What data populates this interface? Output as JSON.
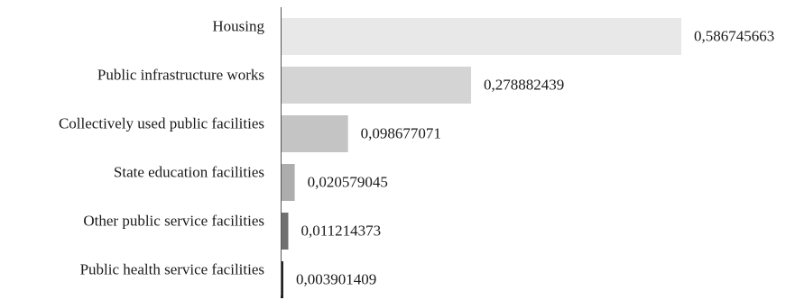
{
  "chart_data": {
    "type": "bar",
    "orientation": "horizontal",
    "categories": [
      "Housing",
      "Public infrastructure works",
      "Collectively used public facilities",
      "State education facilities",
      "Other public service facilities",
      "Public health service facilities"
    ],
    "values": [
      0.586745663,
      0.278882439,
      0.098677071,
      0.020579045,
      0.011214373,
      0.003901409
    ],
    "value_labels": [
      "0,586745663",
      "0,278882439",
      "0,098677071",
      "0,020579045",
      "0,011214373",
      "0,003901409"
    ],
    "bar_colors": [
      "#e8e8e8",
      "#d4d4d4",
      "#c4c4c4",
      "#adadad",
      "#707070",
      "#1e1e1e"
    ],
    "axis_color": "#555555",
    "title": "",
    "xlabel": "",
    "ylabel": "",
    "xlim": [
      0,
      0.5867
    ],
    "grid": false,
    "legend": "none"
  }
}
